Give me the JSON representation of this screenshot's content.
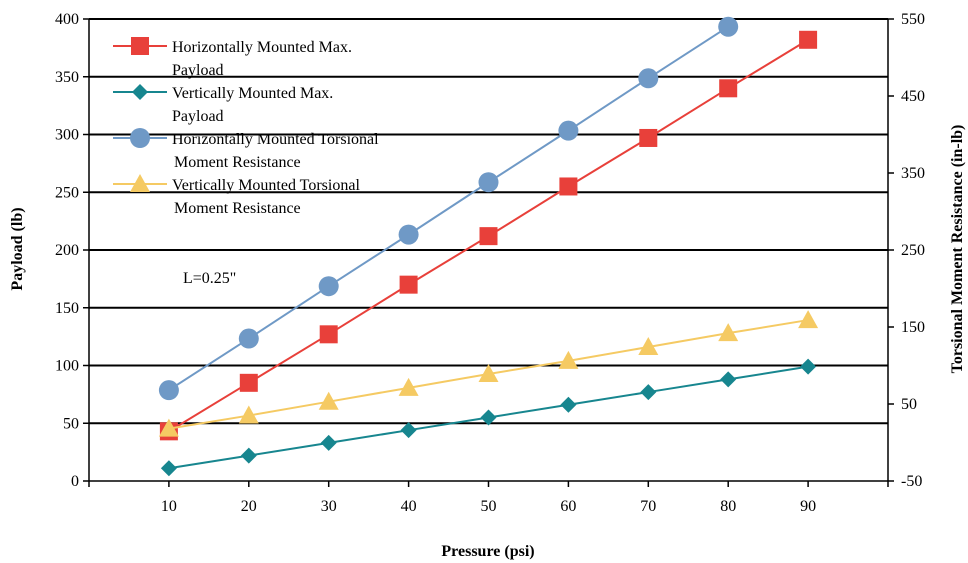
{
  "chart_data": {
    "type": "line",
    "title": "",
    "xlabel": "Pressure (psi)",
    "ylabel": "Payload (lb)",
    "y2label": "Torsional Moment Resistance (in-lb)",
    "x": [
      10,
      20,
      30,
      40,
      50,
      60,
      70,
      80,
      90
    ],
    "xlim": [
      0,
      100
    ],
    "ylim": [
      0,
      400
    ],
    "y2lim": [
      -50,
      550
    ],
    "yticks": [
      0,
      50,
      100,
      150,
      200,
      250,
      300,
      350,
      400
    ],
    "y2ticks": [
      -50,
      50,
      150,
      250,
      350,
      450,
      550
    ],
    "grid": "horizontal",
    "legend_position": "top-left",
    "annotation": "L=0.25\"",
    "series": [
      {
        "name": "Horizontally Mounted Max. Payload",
        "legend_lines": [
          "Horizontally Mounted Max.",
          "Payload"
        ],
        "axis": "left",
        "marker": "square",
        "color": "#e8403a",
        "values": [
          43,
          85,
          127,
          170,
          212,
          255,
          297,
          340,
          382
        ]
      },
      {
        "name": "Vertically Mounted Max. Payload",
        "legend_lines": [
          "Vertically Mounted Max.",
          "Payload"
        ],
        "axis": "left",
        "marker": "diamond",
        "color": "#17868f",
        "values": [
          11,
          22,
          33,
          44,
          55,
          66,
          77,
          88,
          99
        ]
      },
      {
        "name": "Horizontally Mounted Torsional Moment Resistance",
        "legend_lines": [
          "Horizontally Mounted Torsional",
          "Moment Resistance"
        ],
        "axis": "right",
        "marker": "circle",
        "color": "#6f99c6",
        "values": [
          68,
          135,
          203,
          270,
          338,
          405,
          473,
          540,
          null
        ]
      },
      {
        "name": "Vertically Mounted Torsional Moment Resistance",
        "legend_lines": [
          "Vertically Mounted Torsional",
          "Moment Resistance"
        ],
        "axis": "right",
        "marker": "triangle",
        "color": "#f5ca63",
        "values": [
          18,
          35,
          53,
          71,
          89,
          106,
          124,
          142,
          159
        ]
      }
    ]
  }
}
